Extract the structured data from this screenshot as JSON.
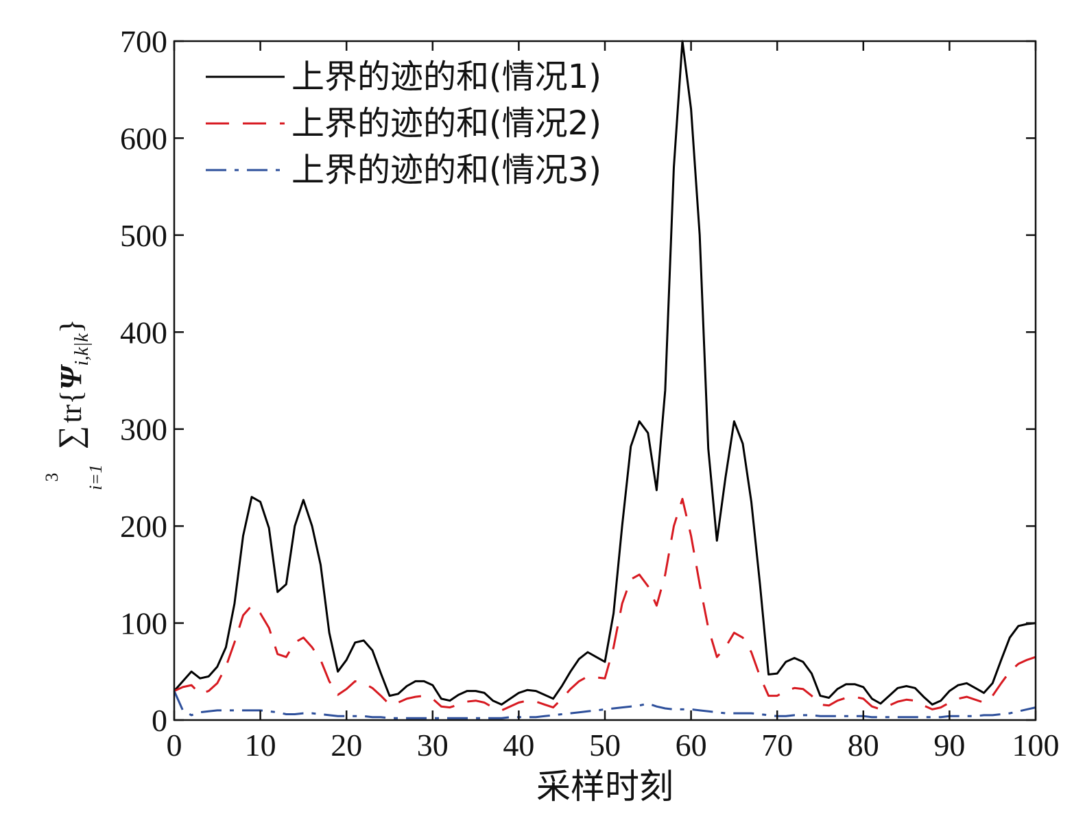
{
  "chart_data": {
    "type": "line",
    "xlabel": "采样时刻",
    "ylabel": {
      "sum_symbol": "∑",
      "upper_limit": "3",
      "lower_limit": "i=1",
      "operator": "tr{",
      "symbol": "Ψ",
      "subscript": "i,k|k",
      "closing": "}"
    },
    "xlim": [
      0,
      100
    ],
    "ylim": [
      0,
      700
    ],
    "xticks": [
      "0",
      "10",
      "20",
      "30",
      "40",
      "50",
      "60",
      "70",
      "80",
      "90",
      "100"
    ],
    "yticks": [
      "0",
      "100",
      "200",
      "300",
      "400",
      "500",
      "600",
      "700"
    ],
    "grid": false,
    "legend_position": "top-left",
    "series": [
      {
        "name": "上界的迹的和(情况1)",
        "color": "#000000",
        "style": "solid",
        "x": [
          0,
          1,
          2,
          3,
          4,
          5,
          6,
          7,
          8,
          9,
          10,
          11,
          12,
          13,
          14,
          15,
          16,
          17,
          18,
          19,
          20,
          21,
          22,
          23,
          24,
          25,
          26,
          27,
          28,
          29,
          30,
          31,
          32,
          33,
          34,
          35,
          36,
          37,
          38,
          39,
          40,
          41,
          42,
          43,
          44,
          45,
          46,
          47,
          48,
          49,
          50,
          51,
          52,
          53,
          54,
          55,
          56,
          57,
          58,
          59,
          60,
          61,
          62,
          63,
          64,
          65,
          66,
          67,
          68,
          69,
          70,
          71,
          72,
          73,
          74,
          75,
          76,
          77,
          78,
          79,
          80,
          81,
          82,
          83,
          84,
          85,
          86,
          87,
          88,
          89,
          90,
          91,
          92,
          93,
          94,
          95,
          96,
          97,
          98,
          99,
          100
        ],
        "values": [
          30,
          40,
          50,
          43,
          45,
          55,
          75,
          120,
          190,
          230,
          225,
          198,
          132,
          140,
          200,
          227,
          200,
          160,
          90,
          50,
          62,
          80,
          82,
          72,
          48,
          25,
          27,
          35,
          40,
          40,
          36,
          22,
          20,
          26,
          30,
          30,
          28,
          20,
          16,
          22,
          28,
          31,
          30,
          26,
          22,
          35,
          50,
          63,
          70,
          65,
          60,
          110,
          200,
          282,
          308,
          296,
          237,
          340,
          570,
          700,
          630,
          500,
          280,
          185,
          250,
          308,
          285,
          225,
          140,
          47,
          48,
          60,
          64,
          60,
          48,
          25,
          23,
          32,
          37,
          37,
          34,
          22,
          17,
          25,
          33,
          35,
          33,
          24,
          16,
          20,
          30,
          36,
          38,
          33,
          28,
          38,
          62,
          85,
          97,
          99,
          100
        ]
      },
      {
        "name": "上界的迹的和(情况2)",
        "color": "#d71920",
        "style": "dashed",
        "x": [
          0,
          1,
          2,
          3,
          4,
          5,
          6,
          7,
          8,
          9,
          10,
          11,
          12,
          13,
          14,
          15,
          16,
          17,
          18,
          19,
          20,
          21,
          22,
          23,
          24,
          25,
          26,
          27,
          28,
          29,
          30,
          31,
          32,
          33,
          34,
          35,
          36,
          37,
          38,
          39,
          40,
          41,
          42,
          43,
          44,
          45,
          46,
          47,
          48,
          49,
          50,
          51,
          52,
          53,
          54,
          55,
          56,
          57,
          58,
          59,
          60,
          61,
          62,
          63,
          64,
          65,
          66,
          67,
          68,
          69,
          70,
          71,
          72,
          73,
          74,
          75,
          76,
          77,
          78,
          79,
          80,
          81,
          82,
          83,
          84,
          85,
          86,
          87,
          88,
          89,
          90,
          91,
          92,
          93,
          94,
          95,
          96,
          97,
          98,
          99,
          100
        ],
        "values": [
          30,
          34,
          36,
          27,
          30,
          38,
          55,
          80,
          108,
          118,
          110,
          95,
          68,
          65,
          80,
          85,
          75,
          62,
          40,
          26,
          32,
          40,
          38,
          33,
          25,
          16,
          18,
          22,
          24,
          25,
          22,
          14,
          13,
          16,
          19,
          20,
          18,
          13,
          10,
          14,
          18,
          20,
          19,
          16,
          13,
          22,
          32,
          40,
          45,
          44,
          43,
          75,
          120,
          145,
          150,
          138,
          118,
          150,
          200,
          228,
          190,
          140,
          95,
          65,
          75,
          90,
          85,
          70,
          45,
          25,
          25,
          30,
          33,
          32,
          25,
          16,
          15,
          20,
          23,
          24,
          22,
          14,
          11,
          15,
          19,
          21,
          20,
          15,
          11,
          13,
          18,
          22,
          24,
          21,
          18,
          25,
          38,
          50,
          58,
          62,
          65
        ]
      },
      {
        "name": "上界的迹的和(情况3)",
        "color": "#2d4f9b",
        "style": "dashdot",
        "x": [
          0,
          1,
          2,
          3,
          4,
          5,
          6,
          7,
          8,
          9,
          10,
          11,
          12,
          13,
          14,
          15,
          16,
          17,
          18,
          19,
          20,
          21,
          22,
          23,
          24,
          25,
          26,
          27,
          28,
          29,
          30,
          31,
          32,
          33,
          34,
          35,
          36,
          37,
          38,
          39,
          40,
          41,
          42,
          43,
          44,
          45,
          46,
          47,
          48,
          49,
          50,
          51,
          52,
          53,
          54,
          55,
          56,
          57,
          58,
          59,
          60,
          61,
          62,
          63,
          64,
          65,
          66,
          67,
          68,
          69,
          70,
          71,
          72,
          73,
          74,
          75,
          76,
          77,
          78,
          79,
          80,
          81,
          82,
          83,
          84,
          85,
          86,
          87,
          88,
          89,
          90,
          91,
          92,
          93,
          94,
          95,
          96,
          97,
          98,
          99,
          100
        ],
        "values": [
          30,
          10,
          5,
          8,
          9,
          10,
          10,
          10,
          10,
          10,
          10,
          9,
          8,
          6,
          6,
          7,
          7,
          6,
          5,
          4,
          4,
          4,
          4,
          3,
          3,
          2,
          2,
          2,
          2,
          2,
          2,
          2,
          2,
          2,
          2,
          2,
          2,
          2,
          2,
          3,
          3,
          3,
          3,
          4,
          5,
          6,
          7,
          8,
          9,
          10,
          11,
          12,
          13,
          14,
          15,
          17,
          14,
          12,
          11,
          11,
          11,
          10,
          9,
          8,
          7,
          7,
          7,
          7,
          6,
          5,
          4,
          4,
          5,
          5,
          5,
          4,
          4,
          4,
          4,
          4,
          4,
          3,
          3,
          3,
          3,
          3,
          3,
          3,
          3,
          3,
          4,
          4,
          4,
          4,
          5,
          5,
          6,
          7,
          9,
          11,
          13
        ]
      }
    ]
  }
}
